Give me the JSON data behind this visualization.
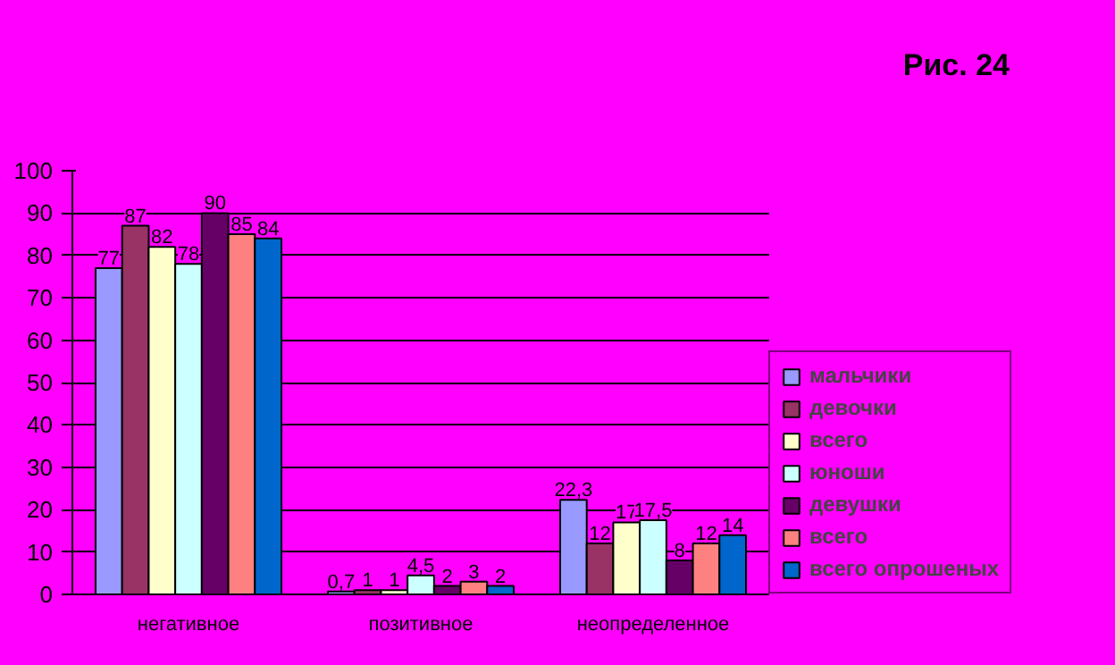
{
  "chart_data": {
    "type": "bar",
    "title": "Рис. 24",
    "categories": [
      "негативное",
      "позитивное",
      "неопределенное"
    ],
    "series": [
      {
        "name": "мальчики",
        "color": "#9999ff",
        "values": [
          77,
          0.7,
          22.3
        ],
        "value_labels": [
          "77",
          "0,7",
          "22,3"
        ]
      },
      {
        "name": "девочки",
        "color": "#993366",
        "values": [
          87,
          1,
          12
        ],
        "value_labels": [
          "87",
          "1",
          "12"
        ]
      },
      {
        "name": "всего",
        "color": "#ffffcc",
        "values": [
          82,
          1,
          17
        ],
        "value_labels": [
          "82",
          "1",
          "17"
        ]
      },
      {
        "name": "юноши",
        "color": "#ccffff",
        "values": [
          78,
          4.5,
          17.5
        ],
        "value_labels": [
          "78",
          "4,5",
          "17,5"
        ]
      },
      {
        "name": "девушки",
        "color": "#660066",
        "values": [
          90,
          2,
          8
        ],
        "value_labels": [
          "90",
          "2",
          "8"
        ]
      },
      {
        "name": "всего",
        "color": "#ff8080",
        "values": [
          85,
          3,
          12
        ],
        "value_labels": [
          "85",
          "3",
          "12"
        ]
      },
      {
        "name": "всего опрошеных",
        "color": "#0066cc",
        "values": [
          84,
          2,
          14
        ],
        "value_labels": [
          "84",
          "2",
          "14"
        ]
      }
    ],
    "ylim": [
      0,
      100
    ],
    "yticks": [
      0,
      10,
      20,
      30,
      40,
      50,
      60,
      70,
      80,
      90,
      100
    ],
    "grid": "y",
    "legend": "right"
  }
}
